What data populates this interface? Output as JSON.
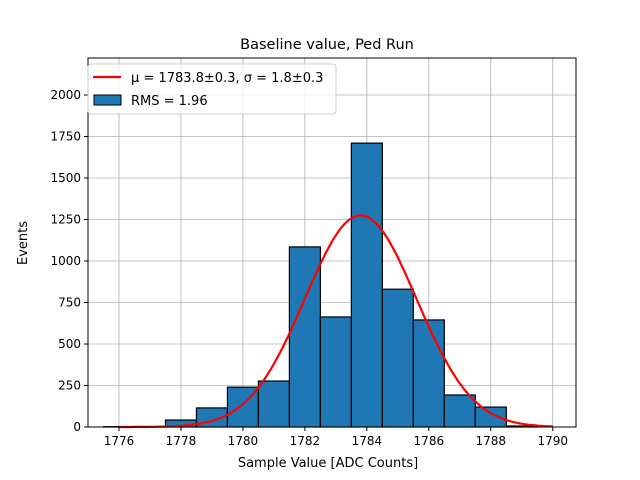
{
  "chart_data": {
    "type": "bar",
    "title": "Baseline value, Ped Run",
    "xlabel": "Sample Value [ADC Counts]",
    "ylabel": "Events",
    "xlim": [
      1775,
      1790.75
    ],
    "ylim": [
      0,
      2223
    ],
    "grid": true,
    "xticks": [
      1776,
      1778,
      1780,
      1782,
      1784,
      1786,
      1788,
      1790
    ],
    "yticks": [
      0,
      250,
      500,
      750,
      1000,
      1250,
      1500,
      1750,
      2000
    ],
    "bin_edges": [
      1775.5,
      1776.5,
      1777.5,
      1778.5,
      1779.5,
      1780.5,
      1781.5,
      1782.5,
      1783.5,
      1784.5,
      1785.5,
      1786.5,
      1787.5,
      1788.5,
      1789.5
    ],
    "values": [
      2,
      0,
      42,
      115,
      240,
      277,
      1085,
      663,
      1710,
      830,
      645,
      193,
      120,
      6
    ],
    "bar_color": "#1f77b4",
    "fit": {
      "type": "gaussian",
      "mu": 1783.8,
      "sigma": 1.8,
      "amplitude": 1275,
      "range": [
        1776,
        1790
      ],
      "color": "#ff0000"
    },
    "legend": {
      "placement": "top-left",
      "entries": [
        {
          "label": "μ = 1783.8±0.3, σ = 1.8±0.3",
          "kind": "line"
        },
        {
          "label": "RMS = 1.96",
          "kind": "patch"
        }
      ]
    }
  }
}
